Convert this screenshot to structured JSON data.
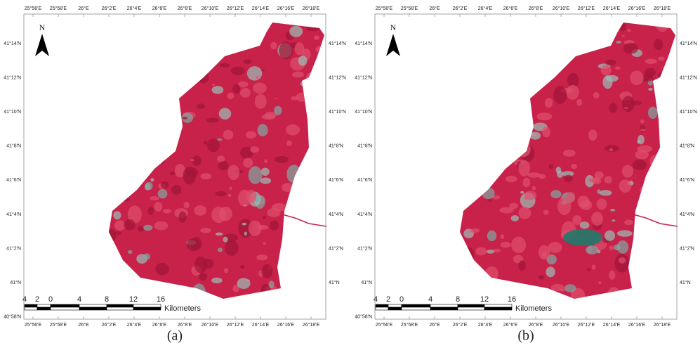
{
  "north": "N",
  "lon_labels": [
    "25°56'E",
    "25°58'E",
    "26°E",
    "26°2'E",
    "26°4'E",
    "26°6'E",
    "26°8'E",
    "26°10'E",
    "26°12'E",
    "26°14'E",
    "26°16'E",
    "26°18'E"
  ],
  "lat_labels_left": [
    "41°14'N",
    "41°12'N",
    "41°10'N",
    "41°8'N",
    "41°6'N",
    "41°4'N",
    "41°2'N",
    "41°N",
    "40°58'N"
  ],
  "lat_labels_right": [
    "41°14'N",
    "41°12'N",
    "41°10'N",
    "41°8'N",
    "41°6'N",
    "41°4'N",
    "41°2'N",
    "41°N"
  ],
  "scale": {
    "labels": [
      "4",
      "2",
      "0",
      "4",
      "8",
      "12",
      "16"
    ],
    "unit": "Kilometers"
  },
  "panels": [
    {
      "caption": "(a)"
    },
    {
      "caption": "(b)"
    }
  ]
}
